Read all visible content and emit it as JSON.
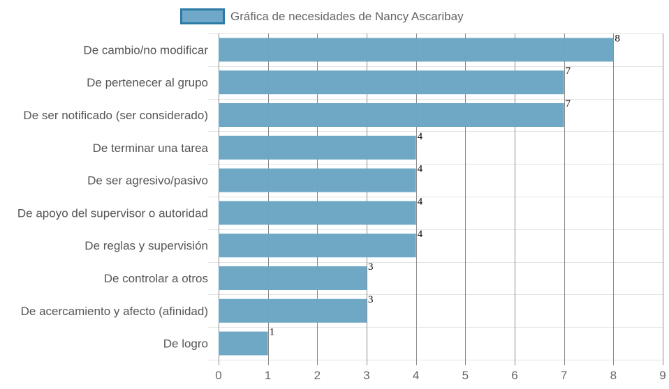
{
  "chart_data": {
    "type": "bar",
    "orientation": "horizontal",
    "title": "",
    "legend": {
      "label": "Gráfica de necesidades de Nancy Ascaribay",
      "position": "top",
      "swatch_fill": "#6fa8c8",
      "swatch_border": "#2e7aa6"
    },
    "series": [
      {
        "name": "Gráfica de necesidades de Nancy Ascaribay",
        "color": "#6ba6c4",
        "values": [
          8,
          7,
          7,
          4,
          4,
          4,
          4,
          3,
          3,
          1
        ]
      }
    ],
    "categories": [
      "De cambio/no modificar",
      "De pertenecer al grupo",
      "De ser notificado (ser considerado)",
      "De terminar una tarea",
      "De ser agresivo/pasivo",
      "De apoyo del supervisor o autoridad",
      "De reglas y supervisión",
      "De controlar a otros",
      "De acercamiento y afecto (afinidad)",
      "De logro"
    ],
    "xlim": [
      0,
      9
    ],
    "x_ticks": [
      "0",
      "1",
      "2",
      "3",
      "4",
      "5",
      "6",
      "7",
      "8",
      "9"
    ],
    "data_labels": [
      "8",
      "7",
      "7",
      "4",
      "4",
      "4",
      "4",
      "3",
      "3",
      "1"
    ],
    "grid": true,
    "colors": {
      "vertical_grid": "#8a8a8a",
      "horizontal_grid": "#e3e3e3"
    }
  }
}
